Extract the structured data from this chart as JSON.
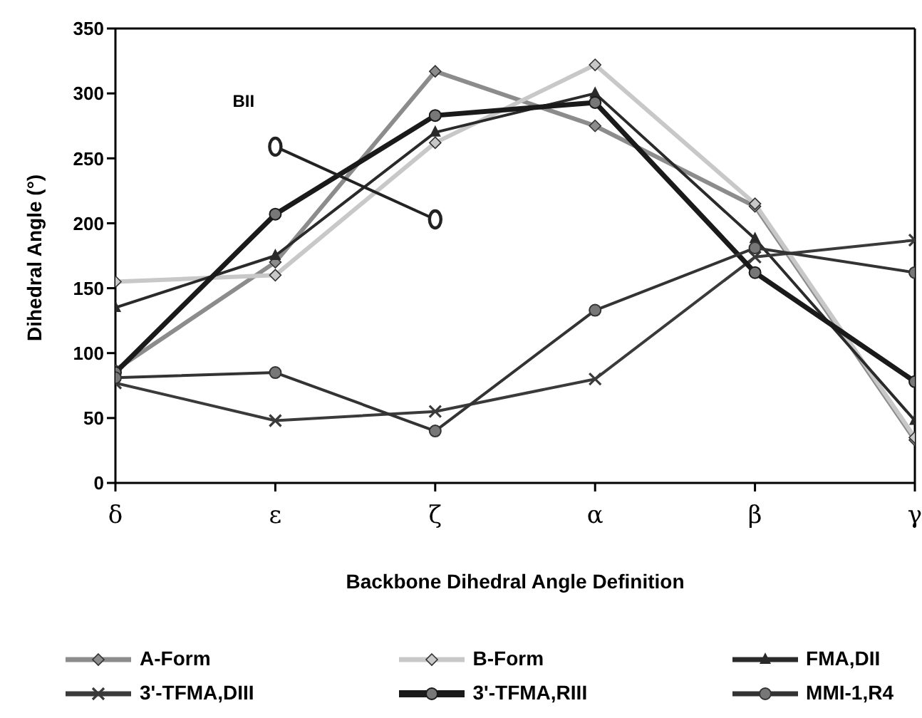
{
  "chart_data": {
    "type": "line",
    "xlabel": "Backbone Dihedral Angle Definition",
    "ylabel": "Dihedral Angle (°)",
    "categories": [
      "δ",
      "ε",
      "ζ",
      "α",
      "β",
      "γ"
    ],
    "ylim": [
      0,
      350
    ],
    "yticks": [
      0,
      50,
      100,
      150,
      200,
      250,
      300,
      350
    ],
    "grid": false,
    "legend": "bottom",
    "line_style": "solid",
    "series": [
      {
        "name": "A-Form",
        "color": "#8c8c8c",
        "marker": "diamond",
        "values": [
          87,
          170,
          317,
          275,
          213,
          33
        ]
      },
      {
        "name": "B-Form",
        "color": "#c8c8c8",
        "marker": "diamond",
        "values": [
          155,
          160,
          262,
          322,
          215,
          35
        ]
      },
      {
        "name": "FMA,DII",
        "color": "#2a2a2a",
        "marker": "triangle",
        "values": [
          135,
          175,
          270,
          300,
          188,
          48
        ]
      },
      {
        "name": "3'-TFMA,DIII",
        "color": "#3a3a3a",
        "marker": "cross",
        "values": [
          77,
          48,
          55,
          80,
          174,
          187
        ]
      },
      {
        "name": "3'-TFMA,RIII",
        "color": "#1a1a1a",
        "marker": "circle",
        "values": [
          85,
          207,
          283,
          293,
          162,
          78
        ]
      },
      {
        "name": "MMI-1,R4",
        "color": "#333333",
        "marker": "circle",
        "values": [
          81,
          85,
          40,
          133,
          181,
          162
        ]
      },
      {
        "name": "BII",
        "color": "#222222",
        "marker": "circle",
        "values": [
          null,
          259,
          203,
          null,
          null,
          null
        ]
      }
    ]
  }
}
